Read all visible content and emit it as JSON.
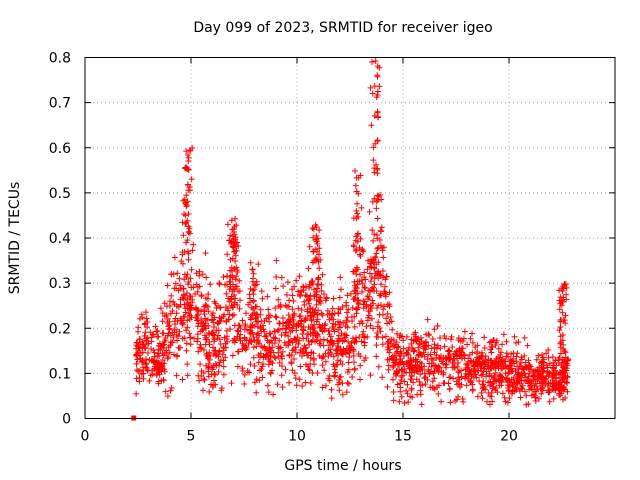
{
  "chart_data": {
    "type": "scatter",
    "title": "Day 099 of 2023, SRMTID for receiver igeo",
    "xlabel": "GPS time / hours",
    "ylabel": "SRMTID / TECUs",
    "xlim": [
      0,
      25
    ],
    "ylim": [
      0,
      0.8
    ],
    "x_ticks": [
      0,
      5,
      10,
      15,
      20
    ],
    "x_tick_labels": [
      "0",
      "5",
      "10",
      "15",
      "20"
    ],
    "y_ticks": [
      0,
      0.1,
      0.2,
      0.3,
      0.4,
      0.5,
      0.6,
      0.7,
      0.8
    ],
    "y_tick_labels": [
      "0",
      "0.1",
      "0.2",
      "0.3",
      "0.4",
      "0.5",
      "0.6",
      "0.7",
      "0.8"
    ],
    "grid": true,
    "marker": "plus",
    "color": "#ff0000",
    "series_trend": [
      {
        "x": 2.4,
        "y": 0.14
      },
      {
        "x": 3.0,
        "y": 0.16
      },
      {
        "x": 3.5,
        "y": 0.12
      },
      {
        "x": 4.0,
        "y": 0.2
      },
      {
        "x": 4.5,
        "y": 0.24
      },
      {
        "x": 4.9,
        "y": 0.3
      },
      {
        "x": 5.5,
        "y": 0.22
      },
      {
        "x": 6.0,
        "y": 0.17
      },
      {
        "x": 6.5,
        "y": 0.19
      },
      {
        "x": 7.0,
        "y": 0.26
      },
      {
        "x": 7.5,
        "y": 0.17
      },
      {
        "x": 8.0,
        "y": 0.22
      },
      {
        "x": 8.5,
        "y": 0.15
      },
      {
        "x": 9.0,
        "y": 0.19
      },
      {
        "x": 9.5,
        "y": 0.2
      },
      {
        "x": 10.0,
        "y": 0.18
      },
      {
        "x": 10.5,
        "y": 0.21
      },
      {
        "x": 11.0,
        "y": 0.22
      },
      {
        "x": 11.5,
        "y": 0.18
      },
      {
        "x": 12.0,
        "y": 0.17
      },
      {
        "x": 12.5,
        "y": 0.18
      },
      {
        "x": 13.0,
        "y": 0.24
      },
      {
        "x": 13.5,
        "y": 0.28
      },
      {
        "x": 13.9,
        "y": 0.3
      },
      {
        "x": 14.5,
        "y": 0.14
      },
      {
        "x": 15.0,
        "y": 0.12
      },
      {
        "x": 16.0,
        "y": 0.13
      },
      {
        "x": 17.0,
        "y": 0.12
      },
      {
        "x": 18.0,
        "y": 0.11
      },
      {
        "x": 19.0,
        "y": 0.11
      },
      {
        "x": 20.0,
        "y": 0.1
      },
      {
        "x": 21.0,
        "y": 0.09
      },
      {
        "x": 22.0,
        "y": 0.09
      },
      {
        "x": 22.8,
        "y": 0.1
      }
    ],
    "peaks": [
      {
        "x": 4.8,
        "y": 0.6
      },
      {
        "x": 7.0,
        "y": 0.45
      },
      {
        "x": 10.9,
        "y": 0.43
      },
      {
        "x": 12.9,
        "y": 0.55
      },
      {
        "x": 13.75,
        "y": 0.8
      },
      {
        "x": 22.5,
        "y": 0.3
      }
    ],
    "outlier": {
      "x": 2.3,
      "y": 0.0
    }
  }
}
